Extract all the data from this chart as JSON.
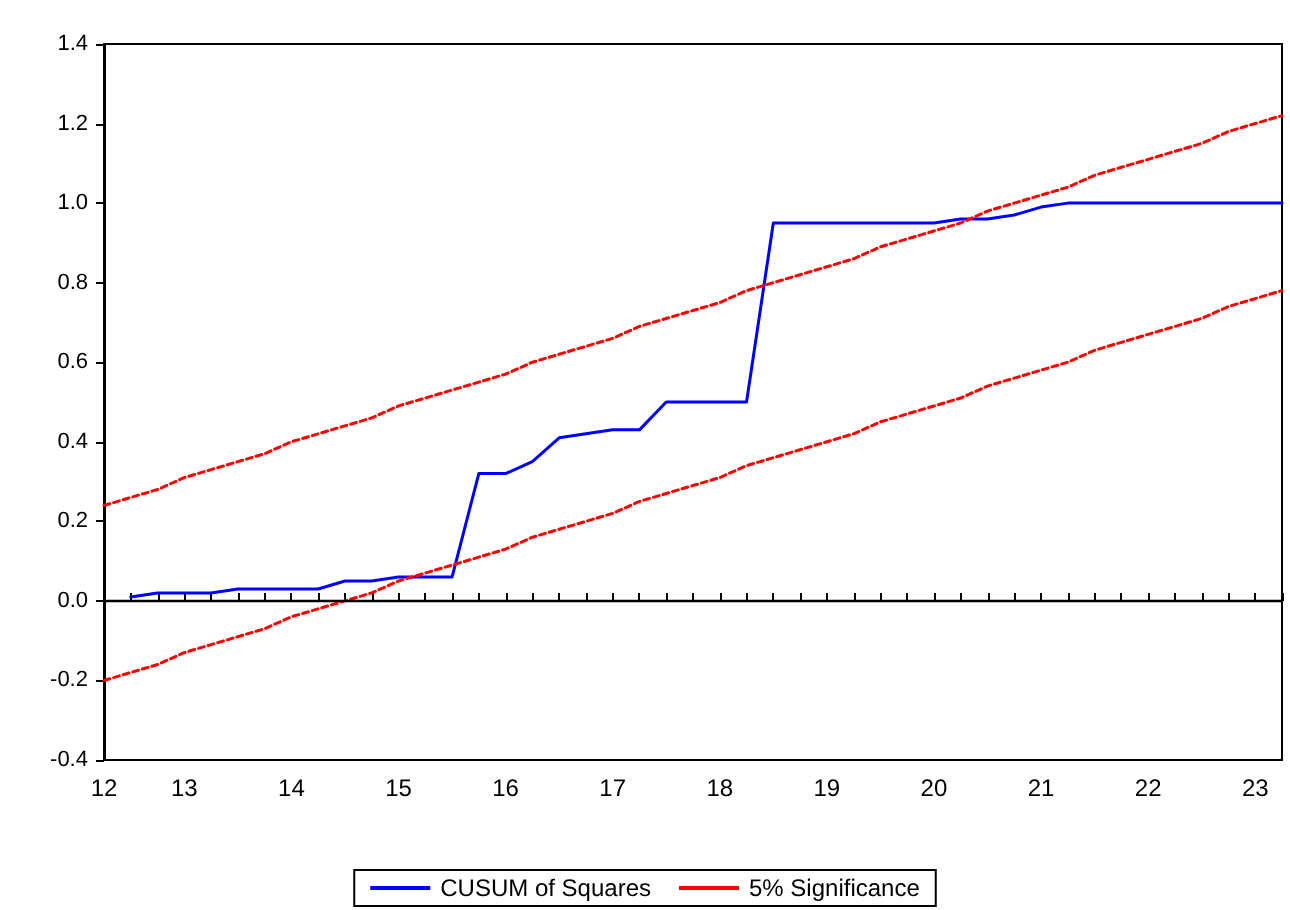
{
  "chart_data": {
    "type": "line",
    "categories": [
      "12",
      null,
      null,
      "13",
      null,
      null,
      null,
      "14",
      null,
      null,
      null,
      "15",
      null,
      null,
      null,
      "16",
      null,
      null,
      null,
      "17",
      null,
      null,
      null,
      "18",
      null,
      null,
      null,
      "19",
      null,
      null,
      null,
      "20",
      null,
      null,
      null,
      "21",
      null,
      null,
      null,
      "22",
      null,
      null,
      null,
      "23",
      null
    ],
    "series": [
      {
        "name": "CUSUM of Squares",
        "color": "#0000ff",
        "line_style": "solid",
        "values": [
          null,
          0.01,
          0.02,
          0.02,
          0.02,
          0.03,
          0.03,
          0.03,
          0.03,
          0.05,
          0.05,
          0.06,
          0.06,
          0.06,
          0.32,
          0.32,
          0.35,
          0.41,
          0.42,
          0.43,
          0.43,
          0.5,
          0.5,
          0.5,
          0.5,
          0.95,
          0.95,
          0.95,
          0.95,
          0.95,
          0.95,
          0.95,
          0.96,
          0.96,
          0.97,
          0.99,
          1.0,
          1.0,
          1.0,
          1.0,
          1.0,
          1.0,
          1.0,
          1.0,
          1.0
        ]
      },
      {
        "name": "5% Significance",
        "color": "#ff0000",
        "line_style": "dashed",
        "values": [
          0.24,
          0.26,
          0.28,
          0.31,
          0.33,
          0.35,
          0.37,
          0.4,
          0.42,
          0.44,
          0.46,
          0.49,
          0.51,
          0.53,
          0.55,
          0.57,
          0.6,
          0.62,
          0.64,
          0.66,
          0.69,
          0.71,
          0.73,
          0.75,
          0.78,
          0.8,
          0.82,
          0.84,
          0.86,
          0.89,
          0.91,
          0.93,
          0.95,
          0.98,
          1.0,
          1.02,
          1.04,
          1.07,
          1.09,
          1.11,
          1.13,
          1.15,
          1.18,
          1.2,
          1.22
        ]
      },
      {
        "color": "#ff0000",
        "line_style": "dashed",
        "values": [
          -0.2,
          -0.18,
          -0.16,
          -0.13,
          -0.11,
          -0.09,
          -0.07,
          -0.04,
          -0.02,
          0.0,
          0.02,
          0.05,
          0.07,
          0.09,
          0.11,
          0.13,
          0.16,
          0.18,
          0.2,
          0.22,
          0.25,
          0.27,
          0.29,
          0.31,
          0.34,
          0.36,
          0.38,
          0.4,
          0.42,
          0.45,
          0.47,
          0.49,
          0.51,
          0.54,
          0.56,
          0.58,
          0.6,
          0.63,
          0.65,
          0.67,
          0.69,
          0.71,
          0.74,
          0.76,
          0.78
        ]
      }
    ],
    "ylim": [
      -0.4,
      1.4
    ],
    "yticks": [
      {
        "value": -0.4,
        "label": "-0.4"
      },
      {
        "value": -0.2,
        "label": "-0.2"
      },
      {
        "value": 0,
        "label": "0.0"
      },
      {
        "value": 0.2,
        "label": "0.2"
      },
      {
        "value": 0.4,
        "label": "0.4"
      },
      {
        "value": 0.6,
        "label": "0.6"
      },
      {
        "value": 0.8,
        "label": "0.8"
      },
      {
        "value": 1.0,
        "label": "1.0"
      },
      {
        "value": 1.2,
        "label": "1.2"
      },
      {
        "value": 1.4,
        "label": "1.4"
      }
    ],
    "ref_lines": [
      {
        "axis": "y",
        "value": 0,
        "color": "#000000",
        "line_style": "solid"
      }
    ],
    "grid": false,
    "legend": "bottom",
    "marker": "none"
  }
}
